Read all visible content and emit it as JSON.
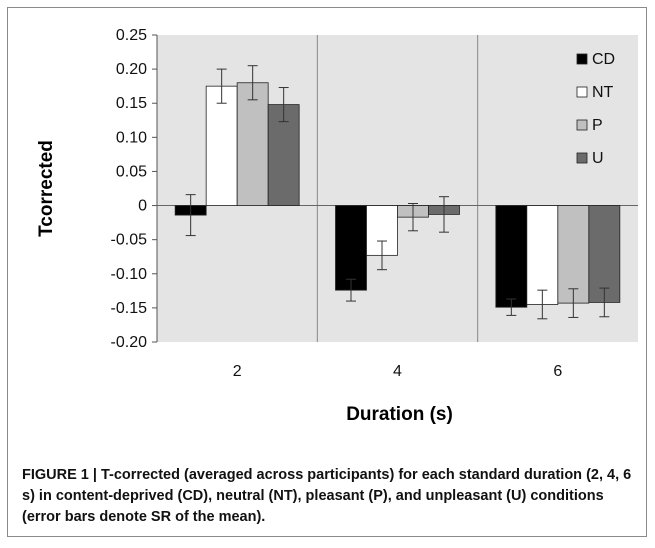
{
  "caption": "FIGURE 1 | T-corrected (averaged across participants) for each standard duration (2, 4, 6 s) in content-deprived (CD), neutral (NT), pleasant (P), and unpleasant (U) conditions (error bars denote SR of the mean).",
  "chart_data": {
    "type": "bar",
    "title": "",
    "xlabel": "Duration (s)",
    "ylabel": "Tcorrected",
    "categories": [
      "2",
      "4",
      "6"
    ],
    "ylim": [
      -0.2,
      0.25
    ],
    "yticks": [
      "0.25",
      "0.20",
      "0.15",
      "0.10",
      "0.05",
      "0",
      "-0.05",
      "-0.10",
      "-0.15",
      "-0.20"
    ],
    "grid": false,
    "legend_position": "top-right",
    "series": [
      {
        "name": "CD",
        "color": "#000000",
        "values": [
          -0.014,
          -0.124,
          -0.149
        ],
        "errors": [
          0.03,
          0.016,
          0.012
        ]
      },
      {
        "name": "NT",
        "color": "#ffffff",
        "values": [
          0.175,
          -0.073,
          -0.145
        ],
        "errors": [
          0.025,
          0.021,
          0.021
        ]
      },
      {
        "name": "P",
        "color": "#c0c0c0",
        "values": [
          0.18,
          -0.017,
          -0.143
        ],
        "errors": [
          0.025,
          0.02,
          0.021
        ]
      },
      {
        "name": "U",
        "color": "#6b6b6b",
        "values": [
          0.148,
          -0.013,
          -0.142
        ],
        "errors": [
          0.025,
          0.026,
          0.021
        ]
      }
    ],
    "plot_background": "#e4e4e4"
  }
}
